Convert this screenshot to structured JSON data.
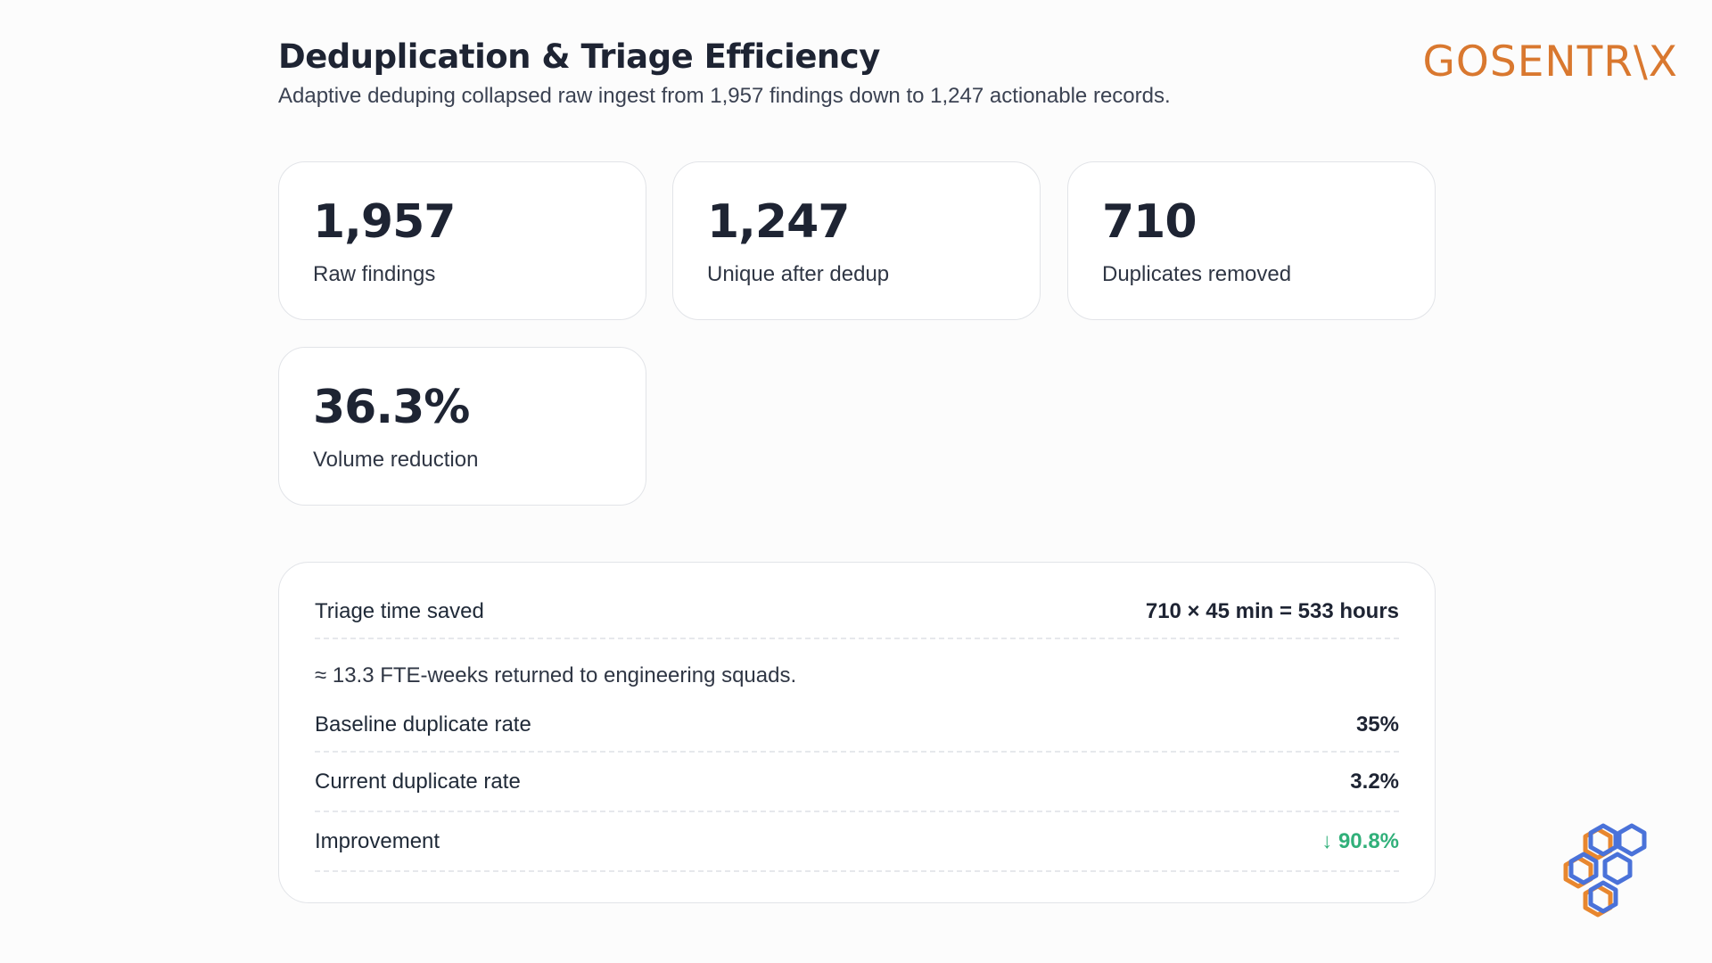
{
  "header": {
    "title": "Deduplication & Triage Efficiency",
    "subtitle": "Adaptive deduping collapsed raw ingest from 1,957 findings down to 1,247 actionable records."
  },
  "brand": {
    "logo_text": "GOSENTR\\X",
    "accent": "#d9782f"
  },
  "metrics": [
    {
      "value": "1,957",
      "label": "Raw findings"
    },
    {
      "value": "1,247",
      "label": "Unique after dedup"
    },
    {
      "value": "710",
      "label": "Duplicates removed"
    },
    {
      "value": "36.3%",
      "label": "Volume reduction"
    }
  ],
  "details": {
    "triage_label": "Triage time saved",
    "triage_value": "710 × 45 min = 533 hours",
    "note": "≈ 13.3 FTE-weeks returned to engineering squads.",
    "baseline_label": "Baseline duplicate rate",
    "baseline_value": "35%",
    "current_label": "Current duplicate rate",
    "current_value": "3.2%",
    "improvement_label": "Improvement",
    "improvement_value": "↓ 90.8%",
    "improvement_color": "#31b07a"
  }
}
